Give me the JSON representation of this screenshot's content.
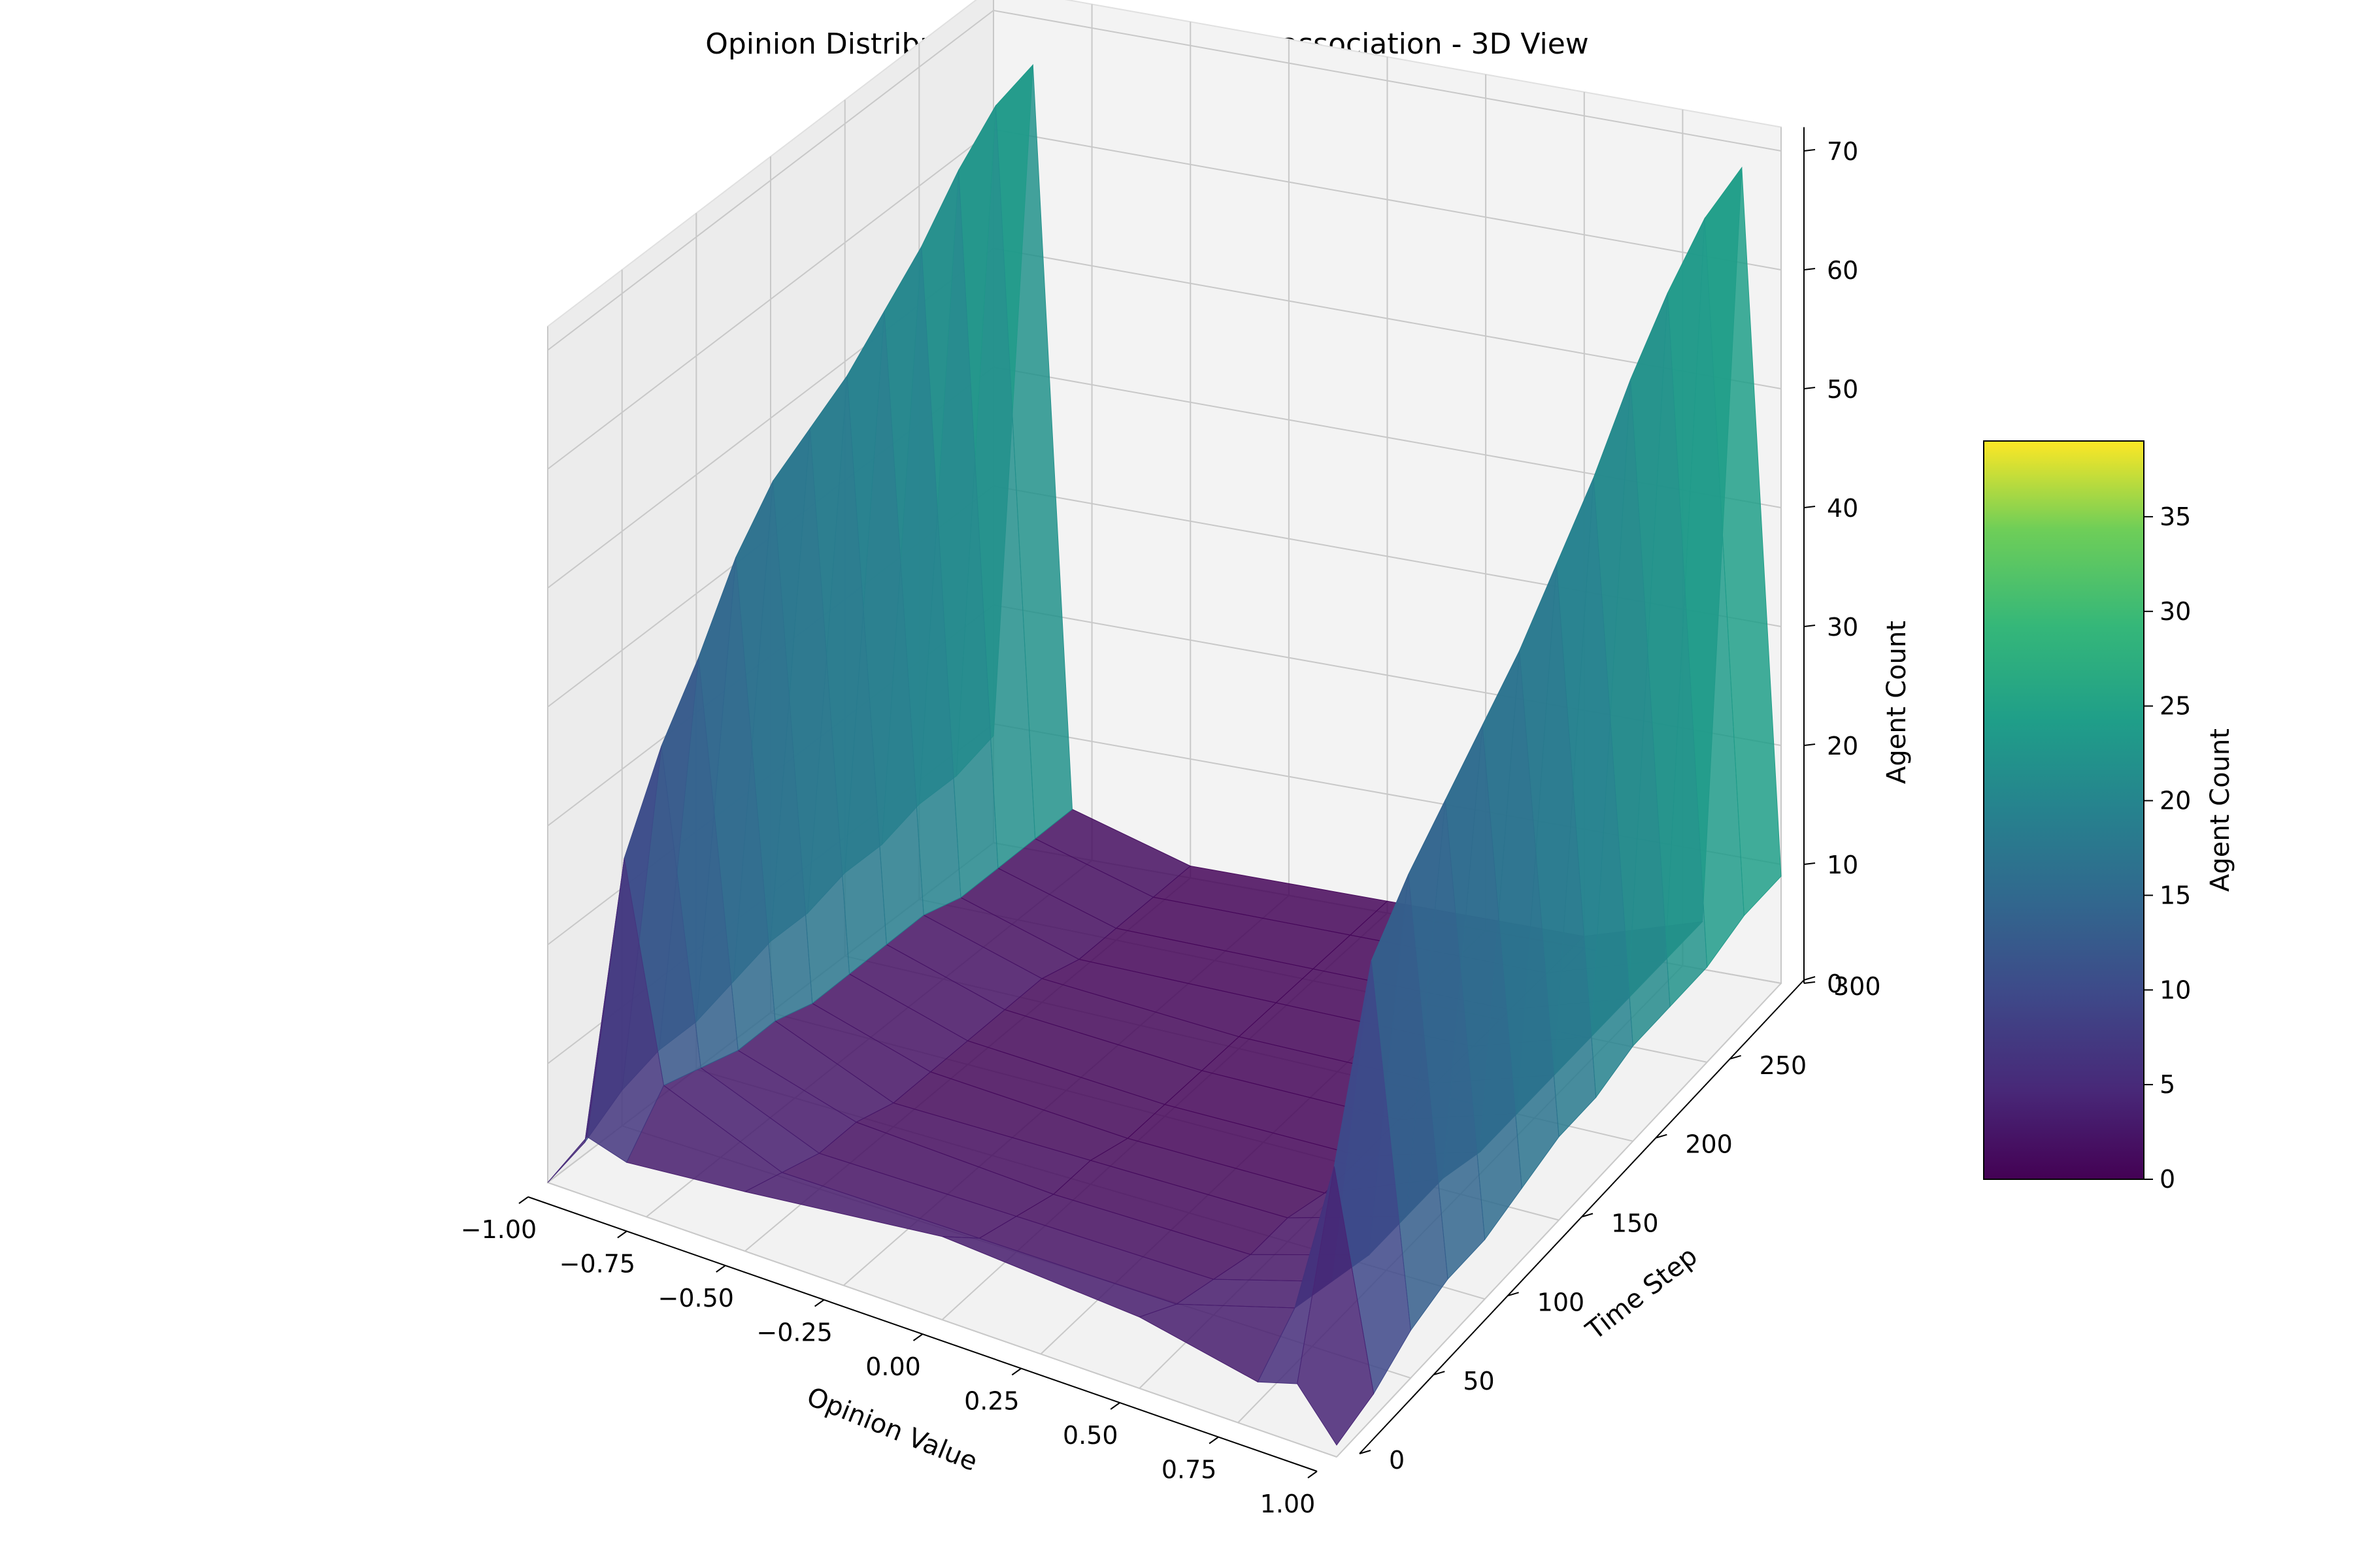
{
  "chart_data": {
    "type": "surface3d",
    "title": "Opinion Distribution over Time - strong_association - 3D View",
    "xlabel": "Opinion Value",
    "ylabel": "Time Step",
    "zlabel": "Agent Count",
    "xlim": [
      -1.0,
      1.0
    ],
    "ylim": [
      0,
      300
    ],
    "zlim": [
      0,
      70
    ],
    "x_ticks": [
      "−1.00",
      "−0.75",
      "−0.50",
      "−0.25",
      "0.00",
      "0.25",
      "0.50",
      "0.75",
      "1.00"
    ],
    "y_ticks": [
      "0",
      "50",
      "100",
      "150",
      "200",
      "250",
      "300"
    ],
    "z_ticks": [
      "0",
      "10",
      "20",
      "30",
      "40",
      "50",
      "60",
      "70"
    ],
    "colormap": "viridis",
    "colorbar": {
      "label": "Agent Count",
      "range": [
        0,
        39
      ],
      "ticks": [
        "0",
        "5",
        "10",
        "15",
        "20",
        "25",
        "30",
        "35"
      ]
    },
    "time_steps": [
      0,
      25,
      50,
      75,
      100,
      125,
      150,
      175,
      200,
      225,
      250,
      275,
      300
    ],
    "series": [
      {
        "x": -1.0,
        "values": [
          0,
          1,
          3,
          4,
          4,
          5,
          6,
          6,
          7,
          7,
          8,
          8,
          9
        ]
      },
      {
        "x": -0.9,
        "values": [
          5,
          26,
          33,
          38,
          44,
          48,
          50,
          52,
          55,
          58,
          62,
          65,
          66
        ]
      },
      {
        "x": -0.8,
        "values": [
          4,
          8,
          7,
          6,
          6,
          5,
          5,
          5,
          5,
          4,
          4,
          4,
          4
        ]
      },
      {
        "x": -0.5,
        "values": [
          5,
          4,
          3,
          3,
          2,
          2,
          2,
          2,
          2,
          1,
          1,
          1,
          1
        ]
      },
      {
        "x": 0.0,
        "values": [
          7,
          4,
          3,
          2,
          2,
          1,
          1,
          1,
          1,
          1,
          1,
          1,
          1
        ]
      },
      {
        "x": 0.5,
        "values": [
          6,
          4,
          3,
          2,
          2,
          1,
          1,
          1,
          1,
          1,
          1,
          1,
          1
        ]
      },
      {
        "x": 0.8,
        "values": [
          4,
          7,
          6,
          5,
          5,
          5,
          4,
          4,
          4,
          4,
          4,
          4,
          4
        ]
      },
      {
        "x": 0.9,
        "values": [
          5,
          20,
          34,
          38,
          41,
          44,
          47,
          51,
          55,
          60,
          64,
          67,
          68
        ]
      },
      {
        "x": 1.0,
        "values": [
          1,
          2,
          4,
          5,
          5,
          6,
          7,
          7,
          8,
          8,
          8,
          9,
          9
        ]
      }
    ],
    "grid": true
  }
}
